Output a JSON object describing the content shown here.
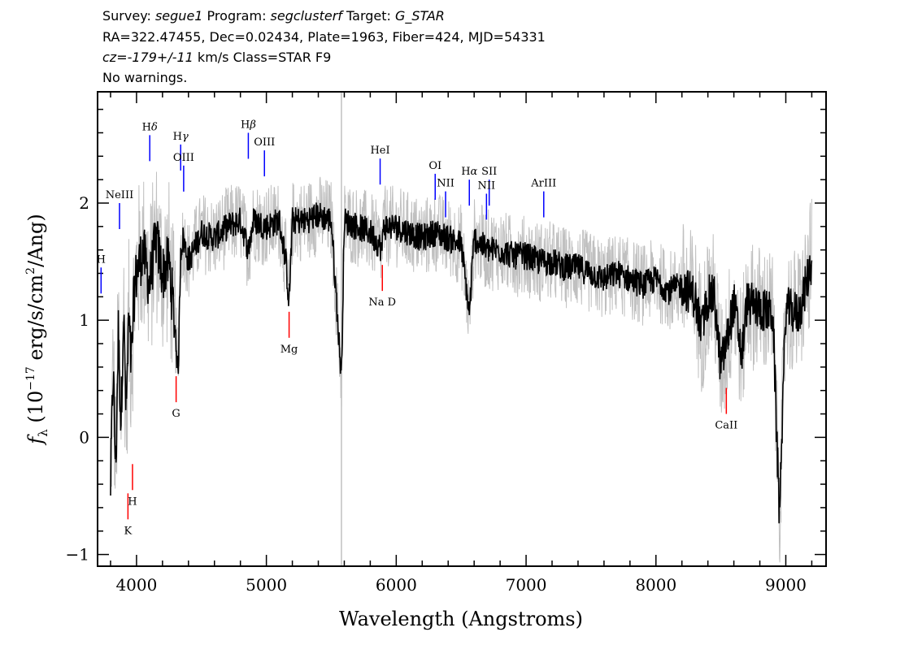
{
  "header": {
    "line1": {
      "survey_label": "Survey: ",
      "survey": "segue1",
      "program_label": " Program: ",
      "program": "segclusterf",
      "target_label": " Target: ",
      "target": "G_STAR"
    },
    "line2": "RA=322.47455, Dec=0.02434, Plate=1963, Fiber=424, MJD=54331",
    "line3": {
      "cz": "cz=-179+/-11",
      "rest": " km/s Class=STAR F9"
    },
    "line4": "No warnings."
  },
  "chart_data": {
    "type": "line",
    "xlabel": "Wavelength (Angstroms)",
    "ylabel": "f",
    "ylabel_sub": "λ",
    "ylabel_rest": " (10",
    "ylabel_exp": "−17",
    "ylabel_units": " erg/s/cm",
    "ylabel_exp2": "2",
    "ylabel_end": "/Ang)",
    "xlim": [
      3700,
      9310
    ],
    "ylim": [
      -1.1,
      2.95
    ],
    "x_ticks": [
      4000,
      5000,
      6000,
      7000,
      8000,
      9000
    ],
    "y_ticks": [
      -1,
      0,
      1,
      2
    ],
    "x_tick_labels": [
      "4000",
      "5000",
      "6000",
      "7000",
      "8000",
      "9000"
    ],
    "y_tick_labels": [
      "−1",
      "0",
      "1",
      "2"
    ],
    "sky_line": 5578,
    "colors": {
      "flux": "#000000",
      "error": "#c0c0c0",
      "emission": "#0000ff",
      "absorption": "#ff0000",
      "sky": "#c0c0c0"
    },
    "series": [
      {
        "role": "flux",
        "x": [
          3800,
          3820,
          3840,
          3860,
          3880,
          3900,
          3920,
          3940,
          3960,
          3980,
          4000,
          4050,
          4100,
          4150,
          4200,
          4250,
          4300,
          4320,
          4340,
          4360,
          4400,
          4500,
          4600,
          4700,
          4800,
          4861,
          4900,
          5000,
          5100,
          5150,
          5175,
          5200,
          5300,
          5400,
          5500,
          5578,
          5600,
          5700,
          5800,
          5893,
          5900,
          6000,
          6100,
          6200,
          6300,
          6400,
          6500,
          6563,
          6600,
          6700,
          6800,
          6900,
          7000,
          7100,
          7200,
          7300,
          7400,
          7500,
          7600,
          7700,
          7800,
          7900,
          8000,
          8100,
          8200,
          8300,
          8350,
          8400,
          8450,
          8498,
          8542,
          8600,
          8662,
          8700,
          8800,
          8900,
          8950,
          9000,
          9100,
          9200
        ],
        "y": [
          -0.4,
          0.6,
          -0.3,
          0.9,
          0.1,
          1.1,
          0.2,
          1.0,
          0.6,
          1.2,
          1.4,
          1.6,
          1.3,
          1.7,
          1.4,
          1.5,
          0.9,
          0.5,
          1.6,
          1.7,
          1.5,
          1.75,
          1.7,
          1.8,
          1.85,
          1.6,
          1.85,
          1.8,
          1.85,
          1.5,
          1.15,
          1.85,
          1.85,
          1.9,
          1.85,
          0.5,
          1.85,
          1.8,
          1.75,
          1.6,
          1.8,
          1.8,
          1.75,
          1.7,
          1.75,
          1.7,
          1.65,
          1.05,
          1.7,
          1.6,
          1.6,
          1.55,
          1.55,
          1.5,
          1.5,
          1.45,
          1.45,
          1.4,
          1.35,
          1.4,
          1.35,
          1.3,
          1.35,
          1.25,
          1.3,
          1.2,
          0.9,
          1.2,
          1.2,
          0.6,
          0.8,
          1.15,
          0.7,
          1.15,
          1.1,
          1.05,
          -0.65,
          1.1,
          1.05,
          1.5
        ]
      }
    ],
    "emission_lines": [
      {
        "label": "H",
        "sub": "",
        "greek": "",
        "x": 3727,
        "y": 1.45
      },
      {
        "label": "NeIII",
        "sub": "",
        "greek": "",
        "x": 3869,
        "y": 2.0
      },
      {
        "label": "H",
        "sub": "",
        "greek": "δ",
        "x": 4102,
        "y": 2.58
      },
      {
        "label": "H",
        "sub": "",
        "greek": "γ",
        "x": 4340,
        "y": 2.5
      },
      {
        "label": "OIII",
        "sub": "",
        "greek": "",
        "x": 4363,
        "y": 2.32
      },
      {
        "label": "H",
        "sub": "",
        "greek": "β",
        "x": 4861,
        "y": 2.6
      },
      {
        "label": "OIII",
        "sub": "",
        "greek": "",
        "x": 4985,
        "y": 2.45
      },
      {
        "label": "HeI",
        "sub": "",
        "greek": "",
        "x": 5876,
        "y": 2.38
      },
      {
        "label": "OI",
        "sub": "",
        "greek": "",
        "x": 6300,
        "y": 2.25
      },
      {
        "label": "NII",
        "sub": "",
        "greek": "",
        "x": 6380,
        "y": 2.1
      },
      {
        "label": "H",
        "sub": "",
        "greek": "α",
        "x": 6563,
        "y": 2.2
      },
      {
        "label": "SII",
        "sub": "",
        "greek": "",
        "x": 6716,
        "y": 2.2
      },
      {
        "label": "NII",
        "sub": "",
        "greek": "",
        "x": 6695,
        "y": 2.08
      },
      {
        "label": "ArIII",
        "sub": "",
        "greek": "",
        "x": 7136,
        "y": 2.1
      }
    ],
    "absorption_lines": [
      {
        "label": "K",
        "x": 3934,
        "y": -0.7
      },
      {
        "label": "H",
        "x": 3969,
        "y": -0.45
      },
      {
        "label": "G",
        "x": 4305,
        "y": 0.3
      },
      {
        "label": "Mg",
        "x": 5175,
        "y": 0.85
      },
      {
        "label": "Na D",
        "x": 5893,
        "y": 1.25
      },
      {
        "label": "CaII",
        "x": 8542,
        "y": 0.2
      }
    ]
  }
}
